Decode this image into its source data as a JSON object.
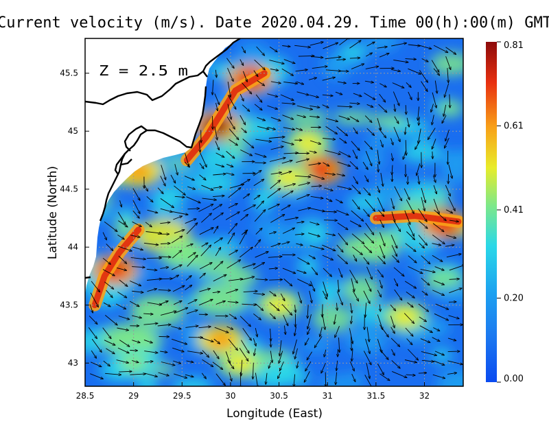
{
  "title": "Current velocity (m/s). Date 2020.04.29. Time 00(h):00(m) GMT",
  "depth_label": "Z = 2.5 m",
  "axes": {
    "xlabel": "Longitude (East)",
    "ylabel": "Latitude (North)",
    "xticks": [
      "28.5",
      "29",
      "29.5",
      "30",
      "30.5",
      "31",
      "31.5",
      "32"
    ],
    "yticks": [
      "43",
      "43.5",
      "44",
      "44.5",
      "45",
      "45.5"
    ],
    "xlim": [
      28.5,
      32.4
    ],
    "ylim": [
      42.8,
      45.8
    ]
  },
  "colorbar": {
    "ticks": [
      "0.81",
      "0.61",
      "0.41",
      "0.20",
      "0.00"
    ],
    "min": 0.0,
    "max": 0.81,
    "colors": [
      "#0a4af0",
      "#1ca0f0",
      "#2ad8e8",
      "#7ee888",
      "#e8ec2a",
      "#f8a018",
      "#e83010",
      "#8c0a0a"
    ]
  },
  "map": {
    "land_color": "#ffffff",
    "coast_color": "#000000",
    "grid": true,
    "vector_color": "#000000"
  },
  "chart_data": {
    "type": "heatmap",
    "title": "Current velocity (m/s). Date 2020.04.29. Time 00(h):00(m) GMT",
    "xlabel": "Longitude (East)",
    "ylabel": "Latitude (North)",
    "xlim": [
      28.5,
      32.4
    ],
    "ylim": [
      42.8,
      45.8
    ],
    "value_range": [
      0.0,
      0.81
    ],
    "features": [
      {
        "lon": 29.85,
        "lat": 45.05,
        "speed": 0.8
      },
      {
        "lon": 30.2,
        "lat": 45.45,
        "speed": 0.7
      },
      {
        "lon": 28.8,
        "lat": 43.8,
        "speed": 0.72
      },
      {
        "lon": 30.92,
        "lat": 44.67,
        "speed": 0.75
      },
      {
        "lon": 32.2,
        "lat": 44.2,
        "speed": 0.7
      },
      {
        "lon": 29.05,
        "lat": 44.65,
        "speed": 0.55
      },
      {
        "lon": 30.6,
        "lat": 44.6,
        "speed": 0.5
      },
      {
        "lon": 30.8,
        "lat": 44.9,
        "speed": 0.45
      },
      {
        "lon": 29.9,
        "lat": 43.2,
        "speed": 0.55
      },
      {
        "lon": 30.5,
        "lat": 43.5,
        "speed": 0.5
      },
      {
        "lon": 31.8,
        "lat": 43.4,
        "speed": 0.5
      },
      {
        "lon": 31.5,
        "lat": 44.0,
        "speed": 0.4
      },
      {
        "lon": 29.5,
        "lat": 43.95,
        "speed": 0.4
      },
      {
        "lon": 29.0,
        "lat": 43.0,
        "speed": 0.35
      },
      {
        "lon": 30.1,
        "lat": 43.0,
        "speed": 0.45
      }
    ],
    "flow": [
      {
        "lon": 29.3,
        "lat": 44.1,
        "speed": 0.45
      },
      {
        "lon": 29.25,
        "lat": 43.45,
        "speed": 0.4
      },
      {
        "lon": 28.95,
        "lat": 43.2,
        "speed": 0.4
      },
      {
        "lon": 29.9,
        "lat": 43.55,
        "speed": 0.38
      }
    ]
  }
}
